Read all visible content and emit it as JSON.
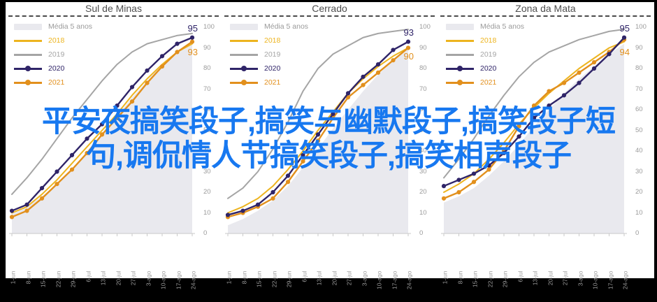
{
  "overlay": {
    "line1": "平安夜搞笑段子,搞笑与幽默段子,搞笑段子短",
    "line2": "句,调侃情人节搞笑段子,搞笑相声段子",
    "color": "#1778f0"
  },
  "frame_color": "#000000",
  "axis": {
    "y_ticks": [
      100,
      90,
      80,
      70,
      60,
      50,
      40,
      30,
      20,
      10,
      0
    ],
    "x_categories": [
      "1-jun",
      "8-jun",
      "15-jun",
      "22-jun",
      "29-jun",
      "6-jul",
      "13-jul",
      "20-jul",
      "27-jul",
      "3-ago",
      "10-ago",
      "17-ago",
      "24-ago"
    ]
  },
  "legend": [
    {
      "label": "Média 5 anos",
      "type": "band",
      "color": "#e9e9ee",
      "text_color": "#9a9a9a"
    },
    {
      "label": "2018",
      "type": "line",
      "color": "#edb41f",
      "text_color": "#edb41f"
    },
    {
      "label": "2019",
      "type": "line",
      "color": "#a5a5a5",
      "text_color": "#a5a5a5"
    },
    {
      "label": "2020",
      "type": "line-marker",
      "color": "#2f2468",
      "text_color": "#2f2468"
    },
    {
      "label": "2021",
      "type": "line-marker",
      "color": "#e2901d",
      "text_color": "#e2901d"
    }
  ],
  "chart_data": [
    {
      "type": "line",
      "title": "Sul de Minas",
      "ylim": [
        0,
        100
      ],
      "grid": false,
      "legend_position": "top-left",
      "final_2020": "95",
      "final_2021": "93",
      "categories": [
        "1-jun",
        "8-jun",
        "15-jun",
        "22-jun",
        "29-jun",
        "6-jul",
        "13-jul",
        "20-jul",
        "27-jul",
        "3-ago",
        "10-ago",
        "17-ago",
        "24-ago"
      ],
      "series": [
        {
          "name": "Média 5 anos",
          "type": "area",
          "color": "#e9e9ee",
          "values": [
            10,
            13,
            18,
            24,
            31,
            39,
            48,
            57,
            66,
            74,
            82,
            88,
            93
          ]
        },
        {
          "name": "2019",
          "type": "line",
          "color": "#a5a5a5",
          "values": [
            19,
            27,
            36,
            46,
            56,
            65,
            74,
            82,
            88,
            92,
            94,
            96,
            97
          ]
        },
        {
          "name": "2018",
          "type": "line",
          "color": "#edb41f",
          "values": [
            10,
            13,
            19,
            26,
            34,
            42,
            50,
            58,
            67,
            75,
            82,
            88,
            92
          ]
        },
        {
          "name": "2021",
          "type": "line-marker",
          "color": "#e2901d",
          "values": [
            8,
            11,
            17,
            24,
            31,
            39,
            48,
            56,
            64,
            73,
            81,
            88,
            93
          ]
        },
        {
          "name": "2020",
          "type": "line-marker",
          "color": "#2f2468",
          "values": [
            11,
            14,
            22,
            30,
            38,
            46,
            53,
            62,
            71,
            79,
            86,
            92,
            95
          ]
        }
      ]
    },
    {
      "type": "line",
      "title": "Cerrado",
      "ylim": [
        0,
        100
      ],
      "grid": false,
      "legend_position": "top-left",
      "final_2020": "93",
      "final_2021": "90",
      "categories": [
        "1-jun",
        "8-jun",
        "15-jun",
        "22-jun",
        "29-jun",
        "6-jul",
        "13-jul",
        "20-jul",
        "27-jul",
        "3-ago",
        "10-ago",
        "17-ago",
        "24-ago"
      ],
      "series": [
        {
          "name": "Média 5 anos",
          "type": "area",
          "color": "#e9e9ee",
          "values": [
            4,
            7,
            11,
            16,
            23,
            32,
            41,
            51,
            60,
            69,
            77,
            84,
            90
          ]
        },
        {
          "name": "2019",
          "type": "line",
          "color": "#a5a5a5",
          "values": [
            17,
            22,
            30,
            41,
            54,
            69,
            80,
            87,
            91,
            95,
            97,
            98,
            99
          ]
        },
        {
          "name": "2018",
          "type": "line",
          "color": "#edb41f",
          "values": [
            10,
            13,
            17,
            23,
            31,
            40,
            50,
            59,
            68,
            75,
            81,
            86,
            90
          ]
        },
        {
          "name": "2021",
          "type": "line-marker",
          "color": "#e2901d",
          "values": [
            8,
            10,
            13,
            17,
            25,
            35,
            45,
            56,
            66,
            72,
            78,
            84,
            90
          ]
        },
        {
          "name": "2020",
          "type": "line-marker",
          "color": "#2f2468",
          "values": [
            9,
            11,
            14,
            20,
            28,
            38,
            48,
            58,
            68,
            76,
            82,
            89,
            93
          ]
        }
      ]
    },
    {
      "type": "line",
      "title": "Zona da Mata",
      "ylim": [
        0,
        100
      ],
      "grid": false,
      "legend_position": "top-left",
      "final_2020": "95",
      "final_2021": "94",
      "categories": [
        "1-jun",
        "8-jun",
        "15-jun",
        "22-jun",
        "29-jun",
        "6-jul",
        "13-jul",
        "20-jul",
        "27-jul",
        "3-ago",
        "10-ago",
        "17-ago",
        "24-ago"
      ],
      "series": [
        {
          "name": "Média 5 anos",
          "type": "area",
          "color": "#e9e9ee",
          "values": [
            15,
            18,
            22,
            28,
            35,
            43,
            52,
            60,
            68,
            75,
            81,
            87,
            92
          ]
        },
        {
          "name": "2019",
          "type": "line",
          "color": "#a5a5a5",
          "values": [
            27,
            36,
            46,
            57,
            67,
            76,
            83,
            88,
            91,
            94,
            96,
            98,
            99
          ]
        },
        {
          "name": "2018",
          "type": "line",
          "color": "#edb41f",
          "values": [
            20,
            24,
            29,
            36,
            44,
            53,
            61,
            68,
            74,
            80,
            85,
            90,
            93
          ]
        },
        {
          "name": "2021",
          "type": "line-marker",
          "color": "#e2901d",
          "values": [
            17,
            20,
            25,
            31,
            40,
            52,
            62,
            69,
            73,
            78,
            83,
            88,
            94
          ]
        },
        {
          "name": "2020",
          "type": "line-marker",
          "color": "#2f2468",
          "values": [
            23,
            26,
            29,
            33,
            39,
            47,
            56,
            62,
            67,
            73,
            80,
            87,
            95
          ]
        }
      ]
    }
  ]
}
